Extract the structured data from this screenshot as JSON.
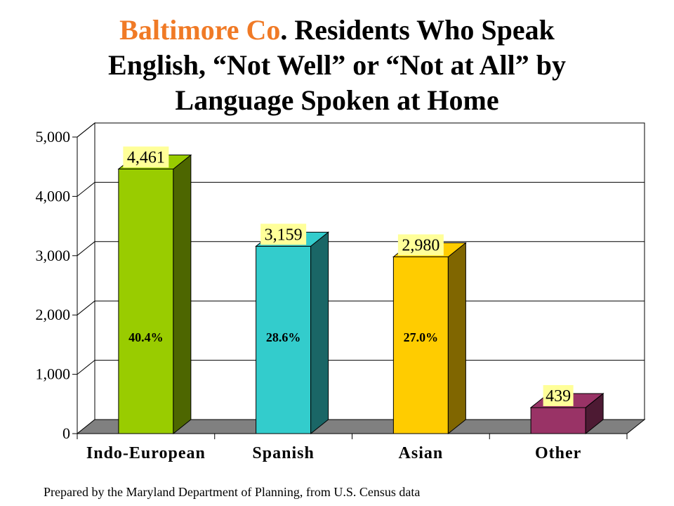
{
  "title": {
    "highlight": "Baltimore Co",
    "rest_line1": ". Residents Who Speak",
    "line2": "English, “Not Well” or “Not at All” by",
    "line3": "Language Spoken at Home"
  },
  "footer": "Prepared by the Maryland Department of Planning, from U.S. Census data",
  "colors": {
    "highlight": "#f07a26",
    "bars": [
      "#99cc00",
      "#33cccc",
      "#ffcc00",
      "#993366"
    ],
    "bars_side": [
      "#4d6600",
      "#1a6666",
      "#806600",
      "#4d1a33"
    ],
    "label_box": "#ffff99",
    "floor": "#808080"
  },
  "chart_data": {
    "type": "bar",
    "categories": [
      "Indo-European",
      "Spanish",
      "Asian",
      "Other"
    ],
    "values": [
      4461,
      3159,
      2980,
      439
    ],
    "value_labels": [
      "4,461",
      "3,159",
      "2,980",
      "439"
    ],
    "percent_labels": [
      "40.4%",
      "28.6%",
      "27.0%",
      ""
    ],
    "y_ticks": [
      "0",
      "1,000",
      "2,000",
      "3,000",
      "4,000",
      "5,000"
    ],
    "ylim": [
      0,
      5000
    ],
    "grid": true,
    "legend": "none",
    "style": "3d"
  }
}
